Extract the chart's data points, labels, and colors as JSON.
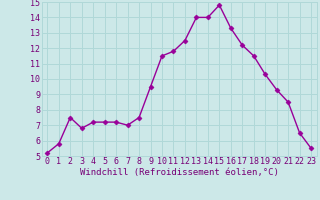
{
  "x": [
    0,
    1,
    2,
    3,
    4,
    5,
    6,
    7,
    8,
    9,
    10,
    11,
    12,
    13,
    14,
    15,
    16,
    17,
    18,
    19,
    20,
    21,
    22,
    23
  ],
  "y": [
    5.2,
    5.8,
    7.5,
    6.8,
    7.2,
    7.2,
    7.2,
    7.0,
    7.5,
    9.5,
    11.5,
    11.8,
    12.5,
    14.0,
    14.0,
    14.8,
    13.3,
    12.2,
    11.5,
    10.3,
    9.3,
    8.5,
    6.5,
    5.5
  ],
  "line_color": "#990099",
  "marker": "D",
  "marker_size": 2.5,
  "linewidth": 1.0,
  "xlabel": "Windchill (Refroidissement éolien,°C)",
  "xlabel_fontsize": 6.5,
  "xlim": [
    -0.5,
    23.5
  ],
  "ylim": [
    5,
    15
  ],
  "yticks": [
    5,
    6,
    7,
    8,
    9,
    10,
    11,
    12,
    13,
    14,
    15
  ],
  "xticks": [
    0,
    1,
    2,
    3,
    4,
    5,
    6,
    7,
    8,
    9,
    10,
    11,
    12,
    13,
    14,
    15,
    16,
    17,
    18,
    19,
    20,
    21,
    22,
    23
  ],
  "xtick_labels": [
    "0",
    "1",
    "2",
    "3",
    "4",
    "5",
    "6",
    "7",
    "8",
    "9",
    "10",
    "11",
    "12",
    "13",
    "14",
    "15",
    "16",
    "17",
    "18",
    "19",
    "20",
    "21",
    "22",
    "23"
  ],
  "grid_color": "#b0d8d8",
  "background_color": "#cce8e8",
  "tick_fontsize": 6,
  "tick_color": "#770077",
  "xlabel_color": "#770077"
}
